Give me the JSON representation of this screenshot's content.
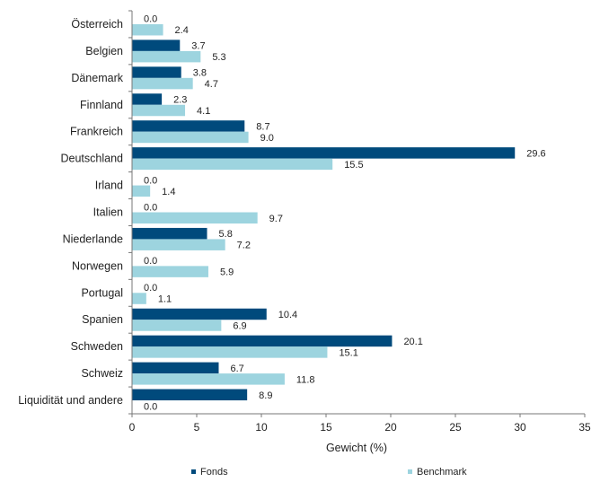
{
  "chart_data": {
    "type": "bar",
    "orientation": "horizontal",
    "title": "",
    "xlabel": "Gewicht (%)",
    "ylabel": "",
    "xlim": [
      0,
      35
    ],
    "xticks": [
      0,
      5,
      10,
      15,
      20,
      25,
      30,
      35
    ],
    "grid": false,
    "legend_position": "bottom",
    "categories": [
      "Österreich",
      "Belgien",
      "Dänemark",
      "Finnland",
      "Frankreich",
      "Deutschland",
      "Irland",
      "Italien",
      "Niederlande",
      "Norwegen",
      "Portugal",
      "Spanien",
      "Schweden",
      "Schweiz",
      "Liquidität und andere"
    ],
    "series": [
      {
        "name": "Fonds",
        "color": "#004a7c",
        "values": [
          0.0,
          3.7,
          3.8,
          2.3,
          8.7,
          29.6,
          0.0,
          0.0,
          5.8,
          0.0,
          0.0,
          10.4,
          20.1,
          6.7,
          8.9
        ]
      },
      {
        "name": "Benchmark",
        "color": "#9dd4df",
        "values": [
          2.4,
          5.3,
          4.7,
          4.1,
          9.0,
          15.5,
          1.4,
          9.7,
          7.2,
          5.9,
          1.1,
          6.9,
          15.1,
          11.8,
          0.0
        ]
      }
    ],
    "value_labels": [
      [
        "0.0",
        "3.7",
        "3.8",
        "2.3",
        "8.7",
        "29.6",
        "0.0",
        "0.0",
        "5.8",
        "0.0",
        "0.0",
        "10.4",
        "20.1",
        "6.7",
        "8.9"
      ],
      [
        "2.4",
        "5.3",
        "4.7",
        "4.1",
        "9.0",
        "15.5",
        "1.4",
        "9.7",
        "7.2",
        "5.9",
        "1.1",
        "6.9",
        "15.1",
        "11.8",
        "0.0"
      ]
    ]
  }
}
